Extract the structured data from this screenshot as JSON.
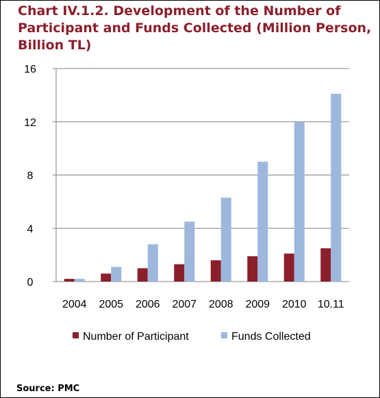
{
  "title_lines": [
    "Chart IV.1.2. Development of the Number of",
    "Participant and Funds Collected (Million Person,",
    "Billion TL)"
  ],
  "source": "Source: PMC",
  "colors": {
    "participant": "#8b1f2c",
    "funds": "#9db7dd",
    "title": "#8b1f2c"
  },
  "chart_data": {
    "type": "bar",
    "categories": [
      "2004",
      "2005",
      "2006",
      "2007",
      "2008",
      "2009",
      "2010",
      "10.11"
    ],
    "series": [
      {
        "name": "Number of Participant",
        "values": [
          0.2,
          0.6,
          1.0,
          1.3,
          1.6,
          1.9,
          2.1,
          2.5
        ]
      },
      {
        "name": "Funds Collected",
        "values": [
          0.2,
          1.1,
          2.8,
          4.5,
          6.3,
          9.0,
          12.0,
          14.1
        ]
      }
    ],
    "yticks": [
      0,
      4,
      8,
      12,
      16
    ],
    "ylim": [
      0,
      16
    ],
    "grid": true,
    "legend_position": "bottom"
  }
}
